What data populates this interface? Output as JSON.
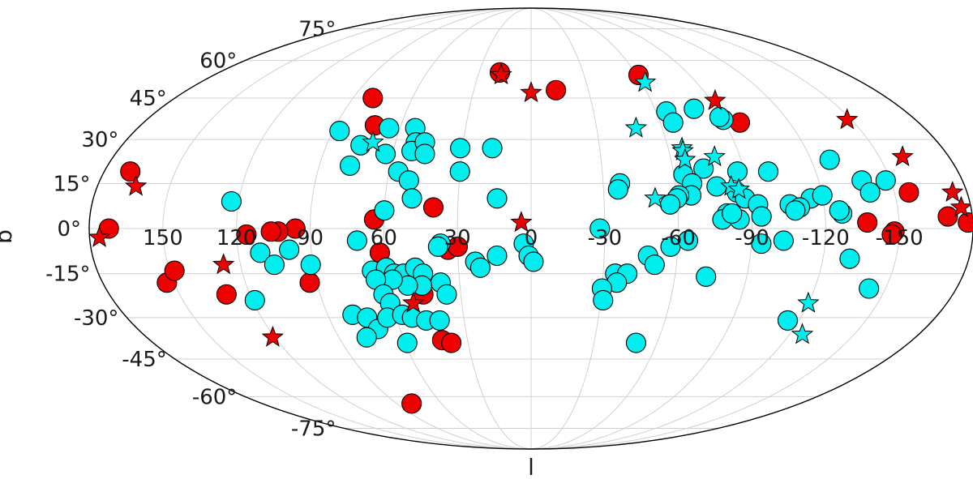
{
  "chart_data": {
    "type": "scatter",
    "projection": "mollweide",
    "xlabel": "l",
    "ylabel": "b",
    "xlim": [
      180,
      -180
    ],
    "ylim": [
      -90,
      90
    ],
    "grid": true,
    "x_tick_labels": [
      "150",
      "120",
      "90",
      "60",
      "30",
      "0",
      "-30",
      "-60",
      "-90",
      "-120",
      "-150"
    ],
    "y_tick_labels": [
      "75°",
      "60°",
      "45°",
      "30°",
      "15°",
      "0°",
      "-15°",
      "-30°",
      "-45°",
      "-60°",
      "-75°"
    ],
    "colors": {
      "red": "#ee0000",
      "cyan": "#00eeee",
      "edge": "#000000",
      "grid": "#d0d0d0"
    },
    "series": [
      {
        "color": "red",
        "marker": "circle",
        "points": [
          [
            18,
            55
          ],
          [
            -13,
            48
          ],
          [
            -61,
            54
          ],
          [
            80,
            45
          ],
          [
            -97,
            36
          ],
          [
            72,
            35
          ],
          [
            169,
            19
          ],
          [
            64,
            3
          ],
          [
            40,
            7
          ],
          [
            -156,
            12
          ],
          [
            -170,
            4
          ],
          [
            -178,
            2
          ],
          [
            172,
            0
          ],
          [
            96,
            0
          ],
          [
            103,
            -1
          ],
          [
            106,
            -1
          ],
          [
            -148,
            -1
          ],
          [
            -137,
            2
          ],
          [
            -147,
            -2
          ],
          [
            34,
            -7
          ],
          [
            30,
            -6
          ],
          [
            93,
            -18
          ],
          [
            153,
            -18
          ],
          [
            148,
            -14
          ],
          [
            130,
            -22
          ],
          [
            62,
            -8
          ],
          [
            46,
            -22
          ],
          [
            42,
            -38
          ],
          [
            38,
            -39
          ],
          [
            80,
            -63
          ],
          [
            116,
            -2
          ]
        ]
      },
      {
        "color": "cyan",
        "marker": "circle",
        "points": [
          [
            87,
            33
          ],
          [
            75,
            28
          ],
          [
            77,
            21
          ],
          [
            65,
            34
          ],
          [
            53,
            34
          ],
          [
            51,
            29
          ],
          [
            52,
            26
          ],
          [
            47,
            29
          ],
          [
            46,
            25
          ],
          [
            63,
            25
          ],
          [
            56,
            19
          ],
          [
            51,
            16
          ],
          [
            49,
            10
          ],
          [
            60,
            6
          ],
          [
            31,
            27
          ],
          [
            30,
            19
          ],
          [
            17,
            27
          ],
          [
            14,
            10
          ],
          [
            123,
            9
          ],
          [
            -79,
            41
          ],
          [
            -65,
            40
          ],
          [
            -66,
            36
          ],
          [
            -90,
            37
          ],
          [
            -89,
            38
          ],
          [
            -128,
            23
          ],
          [
            -148,
            16
          ],
          [
            -138,
            16
          ],
          [
            -140,
            12
          ],
          [
            -100,
            19
          ],
          [
            -73,
            20
          ],
          [
            -87,
            19
          ],
          [
            -64,
            18
          ],
          [
            -67,
            15
          ],
          [
            -77,
            14
          ],
          [
            -66,
            11
          ],
          [
            -61,
            11
          ],
          [
            -60,
            10
          ],
          [
            -85,
            12
          ],
          [
            -88,
            10
          ],
          [
            -93,
            8
          ],
          [
            -106,
            8
          ],
          [
            -115,
            10
          ],
          [
            -120,
            11
          ],
          [
            -110,
            7
          ],
          [
            -108,
            6
          ],
          [
            -127,
            5
          ],
          [
            -126,
            6
          ],
          [
            -94,
            4
          ],
          [
            -80,
            5
          ],
          [
            -78,
            3
          ],
          [
            -85,
            3
          ],
          [
            -82,
            5
          ],
          [
            -57,
            8
          ],
          [
            -37,
            15
          ],
          [
            -36,
            13
          ],
          [
            71,
            -4
          ],
          [
            37,
            -5
          ],
          [
            23,
            -11
          ],
          [
            21,
            -13
          ],
          [
            3,
            -5
          ],
          [
            1,
            -9
          ],
          [
            -1,
            -11
          ],
          [
            14,
            -9
          ],
          [
            99,
            -7
          ],
          [
            111,
            -8
          ],
          [
            106,
            -12
          ],
          [
            91,
            -12
          ],
          [
            119,
            -24
          ],
          [
            66,
            -14
          ],
          [
            60,
            -13
          ],
          [
            57,
            -15
          ],
          [
            53,
            -15
          ],
          [
            48,
            -13
          ],
          [
            45,
            -15
          ],
          [
            38,
            -18
          ],
          [
            36,
            -22
          ],
          [
            46,
            -19
          ],
          [
            52,
            -19
          ],
          [
            58,
            -17
          ],
          [
            65,
            -17
          ],
          [
            63,
            -22
          ],
          [
            61,
            -25
          ],
          [
            79,
            -29
          ],
          [
            73,
            -30
          ],
          [
            70,
            -34
          ],
          [
            64,
            -30
          ],
          [
            57,
            -29
          ],
          [
            53,
            -30
          ],
          [
            47,
            -31
          ],
          [
            41,
            -31
          ],
          [
            77,
            -37
          ],
          [
            59,
            -39
          ],
          [
            -35,
            -15
          ],
          [
            -40,
            -15
          ],
          [
            -36,
            -18
          ],
          [
            -30,
            -20
          ],
          [
            -31,
            -24
          ],
          [
            -48,
            -9
          ],
          [
            -51,
            -12
          ],
          [
            -57,
            -6
          ],
          [
            -64,
            -4
          ],
          [
            -73,
            -16
          ],
          [
            -115,
            -31
          ],
          [
            -50,
            -39
          ],
          [
            -143,
            -20
          ],
          [
            -131,
            -10
          ],
          [
            -28,
            0
          ],
          [
            -94,
            -5
          ],
          [
            -103,
            -4
          ],
          [
            38,
            -6
          ]
        ]
      },
      {
        "color": "red",
        "marker": "star",
        "points": [
          [
            17,
            54
          ],
          [
            0,
            47
          ],
          [
            -92,
            44
          ],
          [
            -148,
            37
          ],
          [
            -160,
            24
          ],
          [
            -174,
            12
          ],
          [
            -176,
            7
          ],
          [
            164,
            14
          ],
          [
            176,
            -3
          ],
          [
            127,
            -12
          ],
          [
            4,
            2
          ],
          [
            51,
            -25
          ],
          [
            121,
            -37
          ]
        ]
      },
      {
        "color": "cyan",
        "marker": "star",
        "points": [
          [
            -62,
            51
          ],
          [
            -48,
            34
          ],
          [
            -66,
            27
          ],
          [
            -66,
            26
          ],
          [
            -66,
            23
          ],
          [
            -79,
            24
          ],
          [
            -83,
            14
          ],
          [
            -86,
            13
          ],
          [
            -51,
            10
          ],
          [
            -120,
            -25
          ],
          [
            -126,
            -36
          ],
          [
            70,
            29
          ]
        ]
      }
    ]
  }
}
